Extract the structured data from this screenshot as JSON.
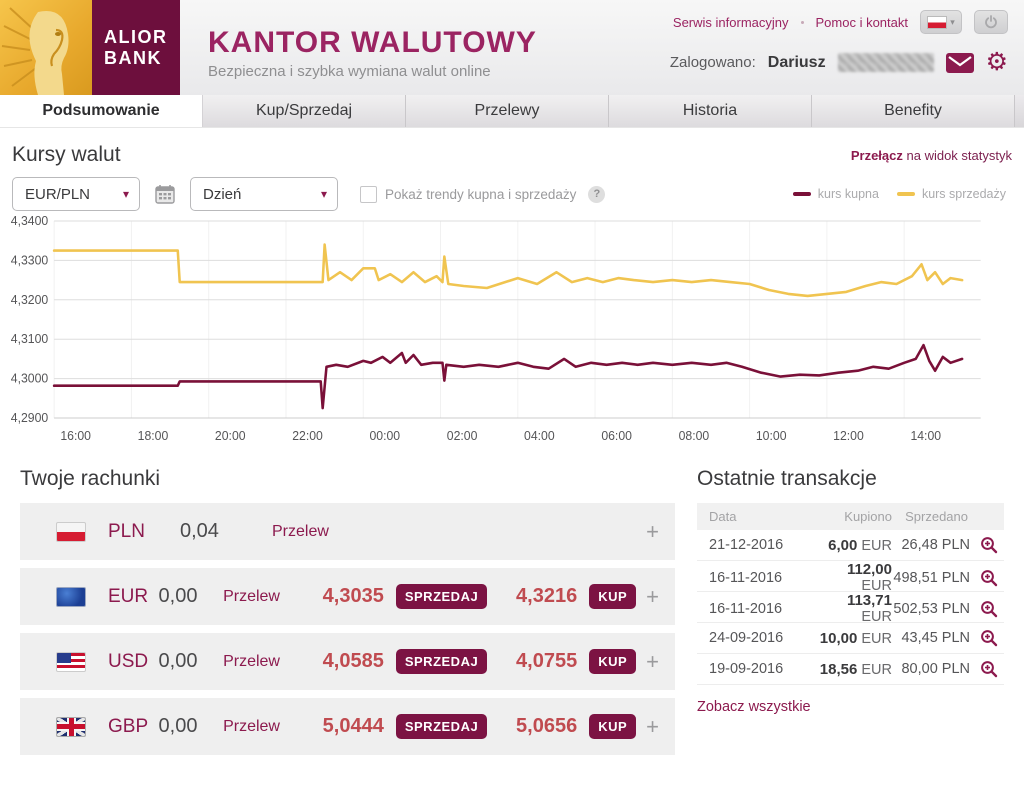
{
  "colors": {
    "maroon": "#8c1a4e",
    "badge_maroon": "#7c1343",
    "rate_red": "#c04b50",
    "line_buy": "#7a1038",
    "line_sell": "#f0c450"
  },
  "header": {
    "brand_line1": "ALIOR",
    "brand_line2": "BANK",
    "title": "KANTOR WALUTOWY",
    "subtitle": "Bezpieczna i szybka wymiana walut online",
    "link_news": "Serwis informacyjny",
    "link_help": "Pomoc i kontakt",
    "logged_label": "Zalogowano:",
    "user_name": "Dariusz",
    "gear_glyph": "⚙"
  },
  "tabs": [
    {
      "label": "Podsumowanie",
      "active": true
    },
    {
      "label": "Kup/Sprzedaj",
      "active": false
    },
    {
      "label": "Przelewy",
      "active": false
    },
    {
      "label": "Historia",
      "active": false
    },
    {
      "label": "Benefity",
      "active": false
    }
  ],
  "rates_section": {
    "title": "Kursy walut",
    "switch_bold": "Przełącz",
    "switch_rest": " na widok statystyk"
  },
  "controls": {
    "pair": "EUR/PLN",
    "period": "Dzień",
    "chevron": "▾",
    "trends_label": "Pokaż trendy kupna i sprzedaży",
    "help": "?"
  },
  "legend": [
    {
      "label": "kurs kupna"
    },
    {
      "label": "kurs sprzedaży"
    }
  ],
  "chart_data": {
    "type": "line",
    "pair": "EUR/PLN",
    "ylim": [
      4.29,
      4.34
    ],
    "ytick_values": [
      4.34,
      4.33,
      4.32,
      4.31,
      4.3,
      4.29
    ],
    "ytick_labels": [
      "4,3400",
      "4,3300",
      "4,3200",
      "4,3100",
      "4,3000",
      "4,2900"
    ],
    "xtick_hours": [
      0,
      2,
      4,
      6,
      8,
      10,
      12,
      14,
      16,
      18,
      20,
      22
    ],
    "xtick_labels": [
      "16:00",
      "18:00",
      "20:00",
      "22:00",
      "00:00",
      "02:00",
      "04:00",
      "06:00",
      "08:00",
      "10:00",
      "12:00",
      "14:00"
    ],
    "grid": true,
    "legend_position": "top-right",
    "series": [
      {
        "name": "kurs kupna",
        "color": "#7a1038",
        "points": [
          [
            0,
            4.2982
          ],
          [
            3.2,
            4.2982
          ],
          [
            3.25,
            4.2993
          ],
          [
            6.9,
            4.2993
          ],
          [
            6.95,
            4.2925
          ],
          [
            7.05,
            4.303
          ],
          [
            7.3,
            4.3035
          ],
          [
            7.6,
            4.303
          ],
          [
            8.0,
            4.3045
          ],
          [
            8.2,
            4.304
          ],
          [
            8.5,
            4.3055
          ],
          [
            8.7,
            4.304
          ],
          [
            9.0,
            4.3065
          ],
          [
            9.1,
            4.304
          ],
          [
            9.3,
            4.306
          ],
          [
            9.5,
            4.3035
          ],
          [
            9.8,
            4.304
          ],
          [
            10.05,
            4.304
          ],
          [
            10.1,
            4.2995
          ],
          [
            10.15,
            4.3035
          ],
          [
            10.6,
            4.303
          ],
          [
            11.0,
            4.3035
          ],
          [
            11.5,
            4.303
          ],
          [
            12.0,
            4.304
          ],
          [
            12.4,
            4.303
          ],
          [
            12.8,
            4.3025
          ],
          [
            13.2,
            4.305
          ],
          [
            13.5,
            4.303
          ],
          [
            13.9,
            4.304
          ],
          [
            14.3,
            4.3035
          ],
          [
            14.7,
            4.304
          ],
          [
            15.1,
            4.3035
          ],
          [
            15.5,
            4.304
          ],
          [
            16.0,
            4.3035
          ],
          [
            16.5,
            4.304
          ],
          [
            17.0,
            4.3035
          ],
          [
            17.4,
            4.304
          ],
          [
            17.8,
            4.303
          ],
          [
            18.3,
            4.3015
          ],
          [
            18.8,
            4.3005
          ],
          [
            19.3,
            4.301
          ],
          [
            19.8,
            4.3008
          ],
          [
            20.3,
            4.3015
          ],
          [
            20.8,
            4.302
          ],
          [
            21.2,
            4.303
          ],
          [
            21.6,
            4.3025
          ],
          [
            22.0,
            4.304
          ],
          [
            22.3,
            4.305
          ],
          [
            22.5,
            4.3085
          ],
          [
            22.65,
            4.3045
          ],
          [
            22.8,
            4.302
          ],
          [
            23.0,
            4.3055
          ],
          [
            23.2,
            4.304
          ],
          [
            23.5,
            4.305
          ]
        ]
      },
      {
        "name": "kurs sprzedaży",
        "color": "#f0c450",
        "points": [
          [
            0,
            4.3325
          ],
          [
            3.2,
            4.3325
          ],
          [
            3.25,
            4.3245
          ],
          [
            6.95,
            4.3245
          ],
          [
            7.0,
            4.334
          ],
          [
            7.1,
            4.325
          ],
          [
            7.4,
            4.327
          ],
          [
            7.7,
            4.325
          ],
          [
            8.0,
            4.328
          ],
          [
            8.3,
            4.328
          ],
          [
            8.4,
            4.325
          ],
          [
            8.7,
            4.3265
          ],
          [
            9.0,
            4.3245
          ],
          [
            9.3,
            4.327
          ],
          [
            9.6,
            4.3245
          ],
          [
            9.9,
            4.326
          ],
          [
            10.05,
            4.3245
          ],
          [
            10.1,
            4.331
          ],
          [
            10.2,
            4.324
          ],
          [
            10.6,
            4.3235
          ],
          [
            11.2,
            4.323
          ],
          [
            12.0,
            4.3255
          ],
          [
            12.5,
            4.324
          ],
          [
            13.0,
            4.327
          ],
          [
            13.4,
            4.3245
          ],
          [
            13.8,
            4.3255
          ],
          [
            14.2,
            4.3245
          ],
          [
            14.6,
            4.3255
          ],
          [
            15.0,
            4.325
          ],
          [
            15.5,
            4.3245
          ],
          [
            16.0,
            4.325
          ],
          [
            16.5,
            4.3245
          ],
          [
            17.0,
            4.325
          ],
          [
            17.5,
            4.3245
          ],
          [
            18.0,
            4.324
          ],
          [
            18.5,
            4.3225
          ],
          [
            19.0,
            4.3215
          ],
          [
            19.5,
            4.321
          ],
          [
            20.0,
            4.3215
          ],
          [
            20.5,
            4.322
          ],
          [
            21.0,
            4.3235
          ],
          [
            21.4,
            4.3245
          ],
          [
            21.8,
            4.324
          ],
          [
            22.2,
            4.326
          ],
          [
            22.45,
            4.329
          ],
          [
            22.6,
            4.325
          ],
          [
            22.8,
            4.327
          ],
          [
            23.0,
            4.324
          ],
          [
            23.2,
            4.3255
          ],
          [
            23.5,
            4.325
          ]
        ]
      }
    ]
  },
  "accounts": {
    "title": "Twoje rachunki",
    "transfer_label": "Przelew",
    "sell_button": "SPRZEDAJ",
    "buy_button": "KUP",
    "add_label": "+",
    "rows": [
      {
        "currency": "PLN",
        "balance": "0,04"
      },
      {
        "currency": "EUR",
        "balance": "0,00",
        "sell_rate": "4,3035",
        "buy_rate": "4,3216"
      },
      {
        "currency": "USD",
        "balance": "0,00",
        "sell_rate": "4,0585",
        "buy_rate": "4,0755"
      },
      {
        "currency": "GBP",
        "balance": "0,00",
        "sell_rate": "5,0444",
        "buy_rate": "5,0656"
      }
    ]
  },
  "transactions": {
    "title": "Ostatnie transakcje",
    "headers": {
      "date": "Data",
      "bought": "Kupiono",
      "sold": "Sprzedano"
    },
    "rows": [
      {
        "date": "21-12-2016",
        "bought_amount": "6,00",
        "bought_ccy": " EUR",
        "sold": "26,48 PLN"
      },
      {
        "date": "16-11-2016",
        "bought_amount": "112,00",
        "bought_ccy": " EUR",
        "sold": "498,51 PLN"
      },
      {
        "date": "16-11-2016",
        "bought_amount": "113,71",
        "bought_ccy": " EUR",
        "sold": "502,53 PLN"
      },
      {
        "date": "24-09-2016",
        "bought_amount": "10,00",
        "bought_ccy": " EUR",
        "sold": "43,45 PLN"
      },
      {
        "date": "19-09-2016",
        "bought_amount": "18,56",
        "bought_ccy": " EUR",
        "sold": "80,00 PLN"
      }
    ],
    "see_all": "Zobacz wszystkie"
  }
}
